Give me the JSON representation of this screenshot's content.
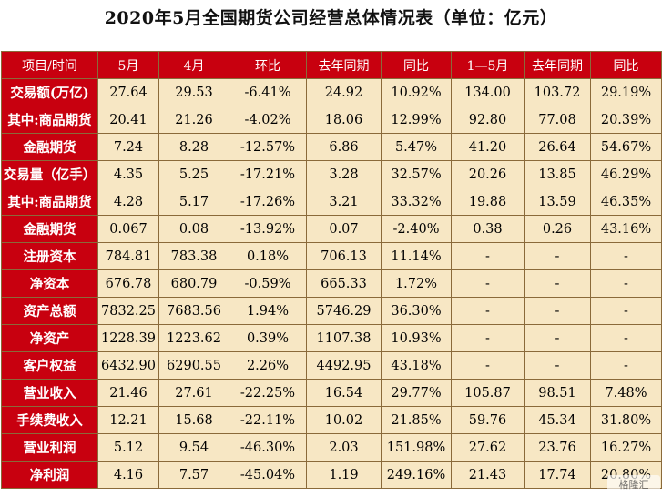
{
  "title": "2020年5月全国期货公司经营总体情况表（单位：亿元）",
  "table": {
    "headers": [
      "项目/时间",
      "5月",
      "4月",
      "环比",
      "去年同期",
      "同比",
      "1—5月",
      "去年同期",
      "同比"
    ],
    "rows": [
      {
        "label": "交易额(万亿)",
        "values": [
          "27.64",
          "29.53",
          "-6.41%",
          "24.92",
          "10.92%",
          "134.00",
          "103.72",
          "29.19%"
        ]
      },
      {
        "label": "其中:商品期货",
        "values": [
          "20.41",
          "21.26",
          "-4.02%",
          "18.06",
          "12.99%",
          "92.80",
          "77.08",
          "20.39%"
        ]
      },
      {
        "label": "金融期货",
        "values": [
          "7.24",
          "8.28",
          "-12.57%",
          "6.86",
          "5.47%",
          "41.20",
          "26.64",
          "54.67%"
        ]
      },
      {
        "label": "交易量（亿手）",
        "values": [
          "4.35",
          "5.25",
          "-17.21%",
          "3.28",
          "32.57%",
          "20.26",
          "13.85",
          "46.29%"
        ]
      },
      {
        "label": "其中:商品期货",
        "values": [
          "4.28",
          "5.17",
          "-17.26%",
          "3.21",
          "33.32%",
          "19.88",
          "13.59",
          "46.35%"
        ]
      },
      {
        "label": "金融期货",
        "values": [
          "0.067",
          "0.08",
          "-13.92%",
          "0.07",
          "-2.40%",
          "0.38",
          "0.26",
          "43.16%"
        ]
      },
      {
        "label": "注册资本",
        "values": [
          "784.81",
          "783.38",
          "0.18%",
          "706.13",
          "11.14%",
          "-",
          "-",
          "-"
        ]
      },
      {
        "label": "净资本",
        "values": [
          "676.78",
          "680.79",
          "-0.59%",
          "665.33",
          "1.72%",
          "-",
          "-",
          "-"
        ]
      },
      {
        "label": "资产总额",
        "values": [
          "7832.25",
          "7683.56",
          "1.94%",
          "5746.29",
          "36.30%",
          "-",
          "-",
          "-"
        ]
      },
      {
        "label": "净资产",
        "values": [
          "1228.39",
          "1223.62",
          "0.39%",
          "1107.38",
          "10.93%",
          "-",
          "-",
          "-"
        ]
      },
      {
        "label": "客户权益",
        "values": [
          "6432.90",
          "6290.55",
          "2.26%",
          "4492.95",
          "43.18%",
          "-",
          "-",
          "-"
        ]
      },
      {
        "label": "营业收入",
        "values": [
          "21.46",
          "27.61",
          "-22.25%",
          "16.54",
          "29.77%",
          "105.87",
          "98.51",
          "7.48%"
        ]
      },
      {
        "label": "手续费收入",
        "values": [
          "12.21",
          "15.68",
          "-22.11%",
          "10.02",
          "21.85%",
          "59.76",
          "45.34",
          "31.80%"
        ]
      },
      {
        "label": "营业利润",
        "values": [
          "5.12",
          "9.54",
          "-46.30%",
          "2.03",
          "151.98%",
          "27.62",
          "23.76",
          "16.27%"
        ]
      },
      {
        "label": "净利润",
        "values": [
          "4.16",
          "7.57",
          "-45.04%",
          "1.19",
          "249.16%",
          "21.43",
          "17.74",
          "20.80%"
        ]
      }
    ]
  },
  "watermark": "格隆汇",
  "colors": {
    "header_bg": "#c8000f",
    "cell_bg": "#f7e7c4",
    "border": "#8a6a3a"
  }
}
